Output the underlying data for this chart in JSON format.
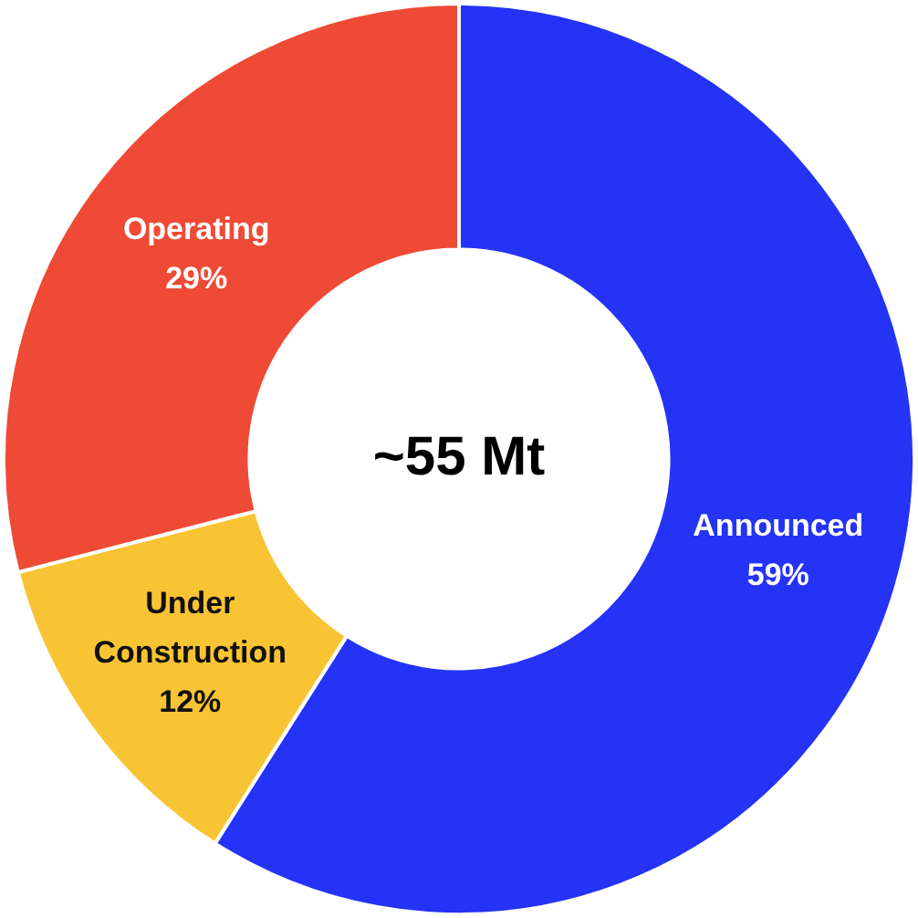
{
  "chart_data": {
    "type": "donut",
    "categories": [
      "Announced",
      "Under Construction",
      "Operating"
    ],
    "values": [
      59,
      12,
      29
    ],
    "colors": [
      "#2433f5",
      "#f9c433",
      "#ef4a35"
    ],
    "value_labels": [
      "59%",
      "12%",
      "29%"
    ],
    "annotations": [
      "~55 Mt"
    ],
    "legend": false
  }
}
